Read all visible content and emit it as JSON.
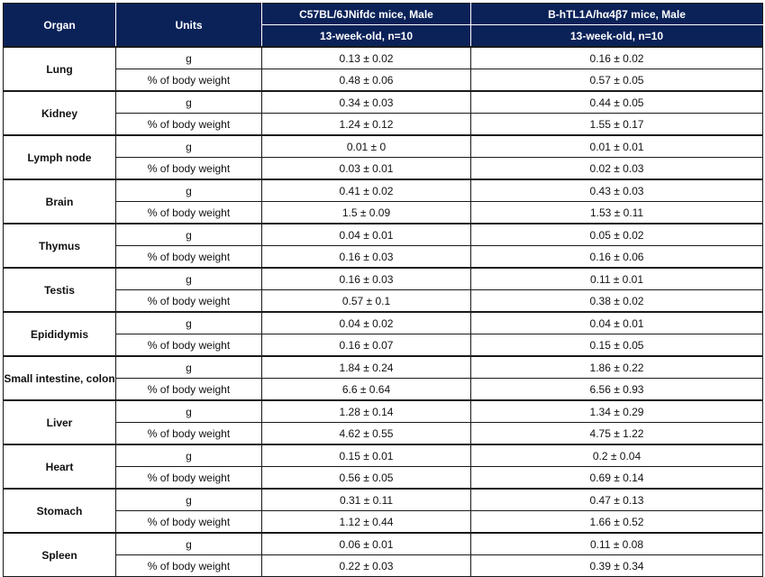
{
  "header": {
    "organ": "Organ",
    "units": "Units",
    "group1": "C57BL/6JNifdc mice, Male",
    "group2": "B-hTL1A/hα4β7 mice, Male",
    "group1_sub": "13-week-old, n=10",
    "group2_sub": "13-week-old, n=10"
  },
  "colors": {
    "header_bg": "#0b2259",
    "header_text": "#ffffff"
  },
  "rows": [
    {
      "organ": "Lung",
      "units": [
        "g",
        "% of body weight"
      ],
      "c57": [
        "0.13 ± 0.02",
        "0.48 ± 0.06"
      ],
      "htl1a": [
        "0.16 ± 0.02",
        "0.57 ± 0.05"
      ]
    },
    {
      "organ": "Kidney",
      "units": [
        "g",
        "% of body weight"
      ],
      "c57": [
        "0.34 ± 0.03",
        "1.24 ± 0.12"
      ],
      "htl1a": [
        "0.44 ± 0.05",
        "1.55 ± 0.17"
      ]
    },
    {
      "organ": "Lymph node",
      "units": [
        "g",
        "% of body weight"
      ],
      "c57": [
        "0.01 ± 0",
        "0.03 ± 0.01"
      ],
      "htl1a": [
        "0.01 ± 0.01",
        "0.02 ± 0.03"
      ]
    },
    {
      "organ": "Brain",
      "units": [
        "g",
        "% of body weight"
      ],
      "c57": [
        "0.41 ± 0.02",
        "1.5 ± 0.09"
      ],
      "htl1a": [
        "0.43 ± 0.03",
        "1.53 ± 0.11"
      ]
    },
    {
      "organ": "Thymus",
      "units": [
        "g",
        "% of body weight"
      ],
      "c57": [
        "0.04 ± 0.01",
        "0.16 ± 0.03"
      ],
      "htl1a": [
        "0.05 ± 0.02",
        "0.16 ± 0.06"
      ]
    },
    {
      "organ": "Testis",
      "units": [
        "g",
        "% of body weight"
      ],
      "c57": [
        "0.16 ± 0.03",
        "0.57 ± 0.1"
      ],
      "htl1a": [
        "0.11 ± 0.01",
        "0.38 ± 0.02"
      ]
    },
    {
      "organ": "Epididymis",
      "units": [
        "g",
        "% of body weight"
      ],
      "c57": [
        "0.04 ± 0.02",
        "0.16 ± 0.07"
      ],
      "htl1a": [
        "0.04 ± 0.01",
        "0.15 ± 0.05"
      ]
    },
    {
      "organ": "Small intestine, colon",
      "units": [
        "g",
        "% of body weight"
      ],
      "c57": [
        "1.84 ± 0.24",
        "6.6 ± 0.64"
      ],
      "htl1a": [
        "1.86 ± 0.22",
        "6.56 ± 0.93"
      ]
    },
    {
      "organ": "Liver",
      "units": [
        "g",
        "% of body weight"
      ],
      "c57": [
        "1.28 ± 0.14",
        "4.62 ± 0.55"
      ],
      "htl1a": [
        "1.34 ± 0.29",
        "4.75 ± 1.22"
      ]
    },
    {
      "organ": "Heart",
      "units": [
        "g",
        "% of body weight"
      ],
      "c57": [
        "0.15 ± 0.01",
        "0.56 ± 0.05"
      ],
      "htl1a": [
        "0.2 ± 0.04",
        "0.69 ± 0.14"
      ]
    },
    {
      "organ": "Stomach",
      "units": [
        "g",
        "% of body weight"
      ],
      "c57": [
        "0.31 ± 0.11",
        "1.12 ± 0.44"
      ],
      "htl1a": [
        "0.47 ± 0.13",
        "1.66 ± 0.52"
      ]
    },
    {
      "organ": "Spleen",
      "units": [
        "g",
        "% of body weight"
      ],
      "c57": [
        "0.06 ± 0.01",
        "0.22 ± 0.03"
      ],
      "htl1a": [
        "0.11 ± 0.08",
        "0.39 ± 0.34"
      ]
    }
  ]
}
